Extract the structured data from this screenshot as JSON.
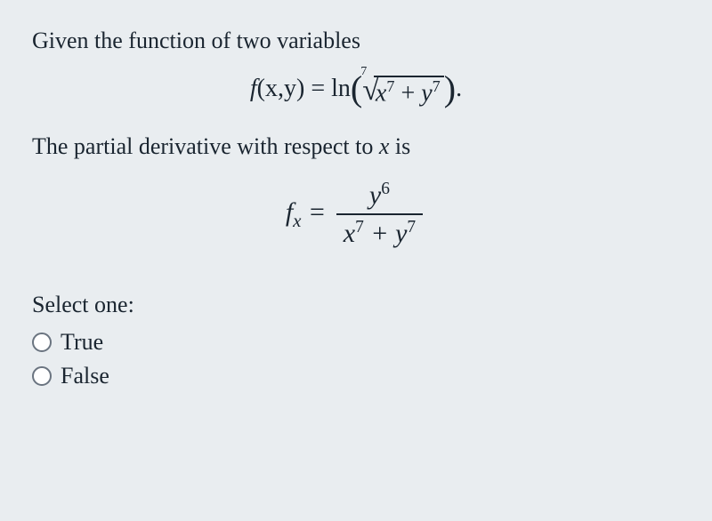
{
  "question": {
    "intro_text": "Given the function of two variables",
    "equation1": {
      "lhs_func": "f",
      "lhs_args": "(x,y)",
      "eq_sign": " = ",
      "operator": "ln",
      "root_index": "7",
      "radicand_term1_base": "x",
      "radicand_term1_exp": "7",
      "plus": " + ",
      "radicand_term2_base": "y",
      "radicand_term2_exp": "7",
      "period": "."
    },
    "statement_text": "The partial derivative with respect to ",
    "statement_var": "x",
    "statement_tail": " is",
    "equation2": {
      "lhs_func": "f",
      "lhs_sub": "x",
      "eq_sign": " = ",
      "numerator_base": "y",
      "numerator_exp": "6",
      "denom_term1_base": "x",
      "denom_term1_exp": "7",
      "plus": " + ",
      "denom_term2_base": "y",
      "denom_term2_exp": "7"
    }
  },
  "answer": {
    "prompt": "Select one:",
    "options": [
      {
        "label": "True"
      },
      {
        "label": "False"
      }
    ]
  },
  "style": {
    "text_color": "#1a2530",
    "bg_color": "#e9edf0",
    "question_fontsize": 26,
    "equation_fontsize": 28
  }
}
